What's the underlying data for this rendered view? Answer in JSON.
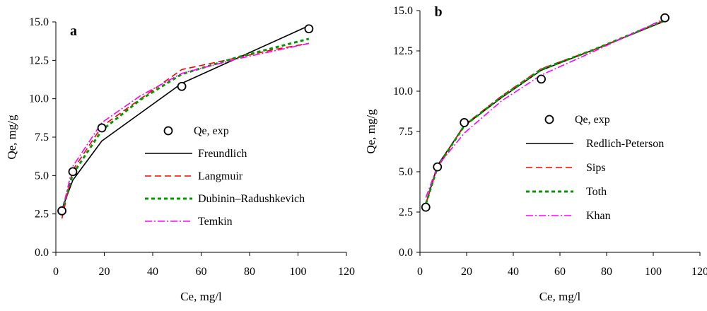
{
  "chart_data": [
    {
      "type": "scatter",
      "panel_label": "a",
      "xlabel": "Ce, mg/l",
      "ylabel": "Qe, mg/g",
      "xlim": [
        0,
        120
      ],
      "ylim": [
        0,
        15
      ],
      "xticks": [
        "0",
        "20",
        "40",
        "60",
        "80",
        "100",
        "120"
      ],
      "yticks": [
        "0.0",
        "2.5",
        "5.0",
        "7.5",
        "10.0",
        "12.5",
        "15.0"
      ],
      "grid": false,
      "legend_position": "center-right",
      "experimental": {
        "name": "Qe, exp",
        "x": [
          2.5,
          7,
          19,
          52,
          104.5
        ],
        "y": [
          2.7,
          5.25,
          8.1,
          10.8,
          14.55
        ]
      },
      "series": [
        {
          "name": "Freundlich",
          "color": "#000000",
          "dash": "solid",
          "x": [
            2.5,
            7,
            19,
            52,
            104.5
          ],
          "y": [
            2.8,
            4.7,
            7.25,
            11.0,
            14.75
          ]
        },
        {
          "name": "Langmuir",
          "color": "#ff0000",
          "dash": "dash",
          "x": [
            2.5,
            7,
            19,
            35,
            52,
            70,
            90,
            104.5
          ],
          "y": [
            2.2,
            5.35,
            8.2,
            10.0,
            11.9,
            12.5,
            13.2,
            13.6
          ]
        },
        {
          "name": "Dubinin–Radushkevich",
          "color": "#009900",
          "dash": "dots",
          "x": [
            2.5,
            7,
            19,
            35,
            52,
            75,
            104.5
          ],
          "y": [
            2.7,
            5.1,
            7.95,
            9.95,
            11.6,
            12.7,
            13.9
          ]
        },
        {
          "name": "Temkin",
          "color": "#ff00ff",
          "dash": "dashdot",
          "x": [
            2.5,
            7,
            19,
            35,
            52,
            75,
            104.5
          ],
          "y": [
            2.6,
            5.6,
            8.45,
            10.2,
            11.65,
            12.6,
            13.6
          ]
        }
      ]
    },
    {
      "type": "scatter",
      "panel_label": "b",
      "xlabel": "Ce, mg/l",
      "ylabel": "Qe, mg/g",
      "xlim": [
        0,
        120
      ],
      "ylim": [
        0,
        15
      ],
      "xticks": [
        "0",
        "20",
        "40",
        "60",
        "80",
        "100",
        "120"
      ],
      "yticks": [
        "0.0",
        "2.5",
        "5.0",
        "7.5",
        "10.0",
        "12.5",
        "15.0"
      ],
      "grid": false,
      "legend_position": "center-right",
      "experimental": {
        "name": "Qe, exp",
        "x": [
          2.5,
          7.5,
          19,
          52,
          105
        ],
        "y": [
          2.8,
          5.3,
          8.05,
          10.75,
          14.55
        ]
      },
      "series": [
        {
          "name": "Redlich-Peterson",
          "color": "#000000",
          "dash": "solid",
          "x": [
            2.5,
            7.5,
            19,
            35,
            52,
            75,
            105
          ],
          "y": [
            3.0,
            5.4,
            7.85,
            9.6,
            11.3,
            12.6,
            14.35
          ]
        },
        {
          "name": "Sips",
          "color": "#ff0000",
          "dash": "dash",
          "x": [
            2.5,
            7.5,
            19,
            35,
            52,
            75,
            105
          ],
          "y": [
            3.0,
            5.3,
            7.9,
            9.7,
            11.4,
            12.6,
            14.4
          ]
        },
        {
          "name": "Toth",
          "color": "#009900",
          "dash": "dots",
          "x": [
            2.5,
            7.5,
            19,
            35,
            52,
            75,
            105
          ],
          "y": [
            3.0,
            5.3,
            7.85,
            9.65,
            11.35,
            12.6,
            14.4
          ]
        },
        {
          "name": "Khan",
          "color": "#ff00ff",
          "dash": "dashdot",
          "x": [
            2.5,
            7.5,
            19,
            35,
            52,
            75,
            105
          ],
          "y": [
            3.4,
            5.35,
            7.4,
            9.4,
            11.0,
            12.5,
            14.5
          ]
        }
      ]
    }
  ]
}
